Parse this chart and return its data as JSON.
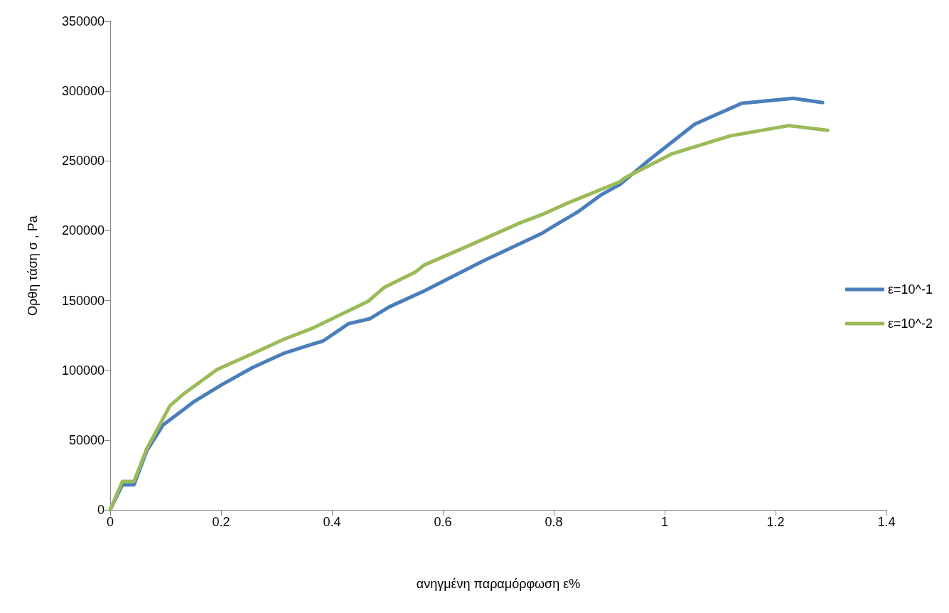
{
  "chart_data": {
    "type": "line",
    "xlabel": "ανηγμένη παραμόρφωση ε%",
    "ylabel": "Ορθη τάση σ , Pa",
    "xlim": [
      0,
      1.4
    ],
    "xticks": [
      0,
      0.2,
      0.4,
      0.6,
      0.8,
      1,
      1.2,
      1.4
    ],
    "ylim": [
      0,
      350000
    ],
    "yticks": [
      0,
      50000,
      100000,
      150000,
      200000,
      250000,
      300000,
      350000
    ],
    "grid": false,
    "legend": "right",
    "marker": "none",
    "line_style": "solid",
    "series": [
      {
        "name": "ε=10^-1",
        "color": "#4a7ebb",
        "x": [
          0,
          0.022,
          0.043,
          0.066,
          0.095,
          0.15,
          0.201,
          0.257,
          0.312,
          0.363,
          0.384,
          0.43,
          0.468,
          0.503,
          0.566,
          0.672,
          0.779,
          0.799,
          0.842,
          0.885,
          0.919,
          0.97,
          1.054,
          1.139,
          1.232,
          1.285
        ],
        "values": [
          0,
          18000,
          18000,
          42300,
          60700,
          77200,
          89600,
          102000,
          112000,
          118500,
          121000,
          133400,
          136900,
          145400,
          156800,
          178200,
          198200,
          203100,
          213100,
          225600,
          233000,
          250000,
          276300,
          291300,
          294800,
          291800
        ]
      },
      {
        "name": "ε=10^-2",
        "color": "#9bbb59",
        "x": [
          0,
          0.022,
          0.043,
          0.066,
          0.108,
          0.134,
          0.193,
          0.257,
          0.312,
          0.367,
          0.465,
          0.494,
          0.55,
          0.566,
          0.652,
          0.736,
          0.779,
          0.821,
          0.919,
          0.927,
          1.012,
          1.118,
          1.224,
          1.294
        ],
        "values": [
          0,
          20400,
          20400,
          43800,
          74700,
          83600,
          100600,
          112000,
          122000,
          130500,
          149400,
          159300,
          170300,
          175300,
          190200,
          205100,
          211600,
          219100,
          235000,
          237500,
          254900,
          267900,
          275300,
          271900
        ]
      }
    ]
  }
}
